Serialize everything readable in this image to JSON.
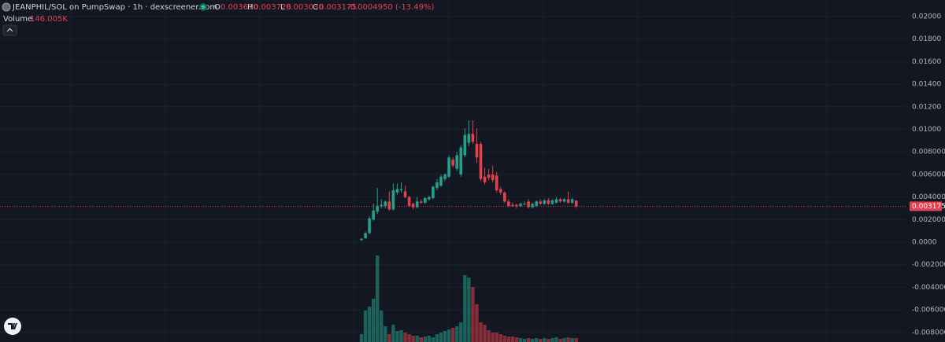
{
  "chart_data": {
    "type": "candlestick",
    "legend": {
      "title": "JEANPHIL/SOL on PumpSwap · 1h · dexscreener.com",
      "open_label": "O",
      "open": "0.003670",
      "high_label": "H",
      "high": "0.003728",
      "low_label": "L",
      "low": "0.003030",
      "close_label": "C",
      "close": "0.003175",
      "change": "-0.0004950 (-13.49%)",
      "volume_label": "Volume",
      "volume": "146.005K"
    },
    "up_color": "#22a08a",
    "down_color": "#e5404f",
    "open": [
      0.0002,
      0.00035,
      0.0008,
      0.002,
      0.0027,
      0.0032,
      0.0032,
      0.0036,
      0.0029,
      0.0044,
      0.0046,
      0.0045,
      0.004,
      0.0034,
      0.0031,
      0.0036,
      0.0035,
      0.0038,
      0.0039,
      0.0048,
      0.005,
      0.0056,
      0.0058,
      0.0073,
      0.0065,
      0.006,
      0.0077,
      0.0088,
      0.0096,
      0.0087,
      0.0087,
      0.0058,
      0.006,
      0.006,
      0.0059,
      0.0047,
      0.0044,
      0.0036,
      0.0033,
      0.0033,
      0.0032,
      0.0034,
      0.0036,
      0.0031,
      0.0032,
      0.0036,
      0.0034,
      0.0037,
      0.0034,
      0.0035,
      0.0038,
      0.0036,
      0.0038,
      0.0035,
      0.00367
    ],
    "high": [
      0.00035,
      0.0009,
      0.0023,
      0.0034,
      0.0048,
      0.0038,
      0.0037,
      0.0045,
      0.0052,
      0.0052,
      0.0053,
      0.005,
      0.0041,
      0.0035,
      0.004,
      0.0038,
      0.004,
      0.0041,
      0.005,
      0.0056,
      0.006,
      0.0061,
      0.0077,
      0.0075,
      0.008,
      0.0086,
      0.0101,
      0.0108,
      0.0108,
      0.0101,
      0.0089,
      0.0066,
      0.0065,
      0.0068,
      0.0062,
      0.0049,
      0.0045,
      0.0038,
      0.0035,
      0.0034,
      0.0035,
      0.0036,
      0.0038,
      0.0035,
      0.0037,
      0.0038,
      0.0038,
      0.0039,
      0.0038,
      0.004,
      0.0039,
      0.0039,
      0.0045,
      0.0039,
      0.003728
    ],
    "low": [
      0.0001,
      0.0003,
      0.0007,
      0.0019,
      0.0025,
      0.003,
      0.003,
      0.0028,
      0.0028,
      0.0042,
      0.0044,
      0.0039,
      0.0031,
      0.0029,
      0.003,
      0.0034,
      0.0034,
      0.0037,
      0.0038,
      0.0046,
      0.0049,
      0.0054,
      0.0057,
      0.0066,
      0.0063,
      0.0058,
      0.0075,
      0.0085,
      0.0087,
      0.007,
      0.0054,
      0.0051,
      0.0055,
      0.0053,
      0.0044,
      0.0042,
      0.0035,
      0.0031,
      0.0031,
      0.003,
      0.0031,
      0.0033,
      0.003,
      0.003,
      0.0031,
      0.0033,
      0.0033,
      0.0033,
      0.0033,
      0.0034,
      0.0035,
      0.0035,
      0.0034,
      0.0034,
      0.00303
    ],
    "close": [
      0.0003,
      0.0008,
      0.0021,
      0.0028,
      0.0032,
      0.0033,
      0.0036,
      0.0029,
      0.0046,
      0.0047,
      0.0047,
      0.004,
      0.0032,
      0.0031,
      0.0036,
      0.0035,
      0.0039,
      0.004,
      0.0049,
      0.0053,
      0.0058,
      0.006,
      0.0075,
      0.0068,
      0.0077,
      0.0084,
      0.0095,
      0.0096,
      0.0089,
      0.0075,
      0.0056,
      0.0053,
      0.0057,
      0.0055,
      0.0046,
      0.0044,
      0.0036,
      0.0032,
      0.0032,
      0.0032,
      0.0034,
      0.0034,
      0.0031,
      0.0034,
      0.0036,
      0.0034,
      0.0037,
      0.0034,
      0.0037,
      0.0038,
      0.0036,
      0.0038,
      0.0035,
      0.0038,
      0.003175
    ],
    "volume": [
      292000,
      1168000,
      1314000,
      1606000,
      3212000,
      1168000,
      584000,
      292000,
      642000,
      409000,
      438000,
      350000,
      292000,
      234000,
      234000,
      175000,
      204000,
      234000,
      175000,
      292000,
      350000,
      409000,
      467000,
      526000,
      584000,
      730000,
      2482000,
      2394000,
      2044000,
      1402000,
      730000,
      642000,
      438000,
      350000,
      350000,
      292000,
      234000,
      204000,
      204000,
      175000,
      146000,
      117000,
      146000,
      117000,
      146000,
      117000,
      146000,
      117000,
      146000,
      175000,
      117000,
      146000,
      175000,
      146000,
      146005
    ],
    "ylim": [
      -0.00885,
      0.02146
    ],
    "yticks": [
      {
        "value": 0.02,
        "label": "0.02000"
      },
      {
        "value": 0.018,
        "label": "0.01800"
      },
      {
        "value": 0.016,
        "label": "0.01600"
      },
      {
        "value": 0.014,
        "label": "0.01400"
      },
      {
        "value": 0.012,
        "label": "0.01200"
      },
      {
        "value": 0.01,
        "label": "0.01000"
      },
      {
        "value": 0.008,
        "label": "0.008000"
      },
      {
        "value": 0.006,
        "label": "0.006000"
      },
      {
        "value": 0.004,
        "label": "0.004000"
      },
      {
        "value": 0.002,
        "label": "0.002000"
      },
      {
        "value": 0,
        "label": "0.0000"
      },
      {
        "value": -0.002,
        "label": "-0.002000"
      },
      {
        "value": -0.004,
        "label": "-0.004000"
      },
      {
        "value": -0.006,
        "label": "-0.006000"
      },
      {
        "value": -0.008,
        "label": "-0.008000"
      }
    ],
    "grid": true
  }
}
